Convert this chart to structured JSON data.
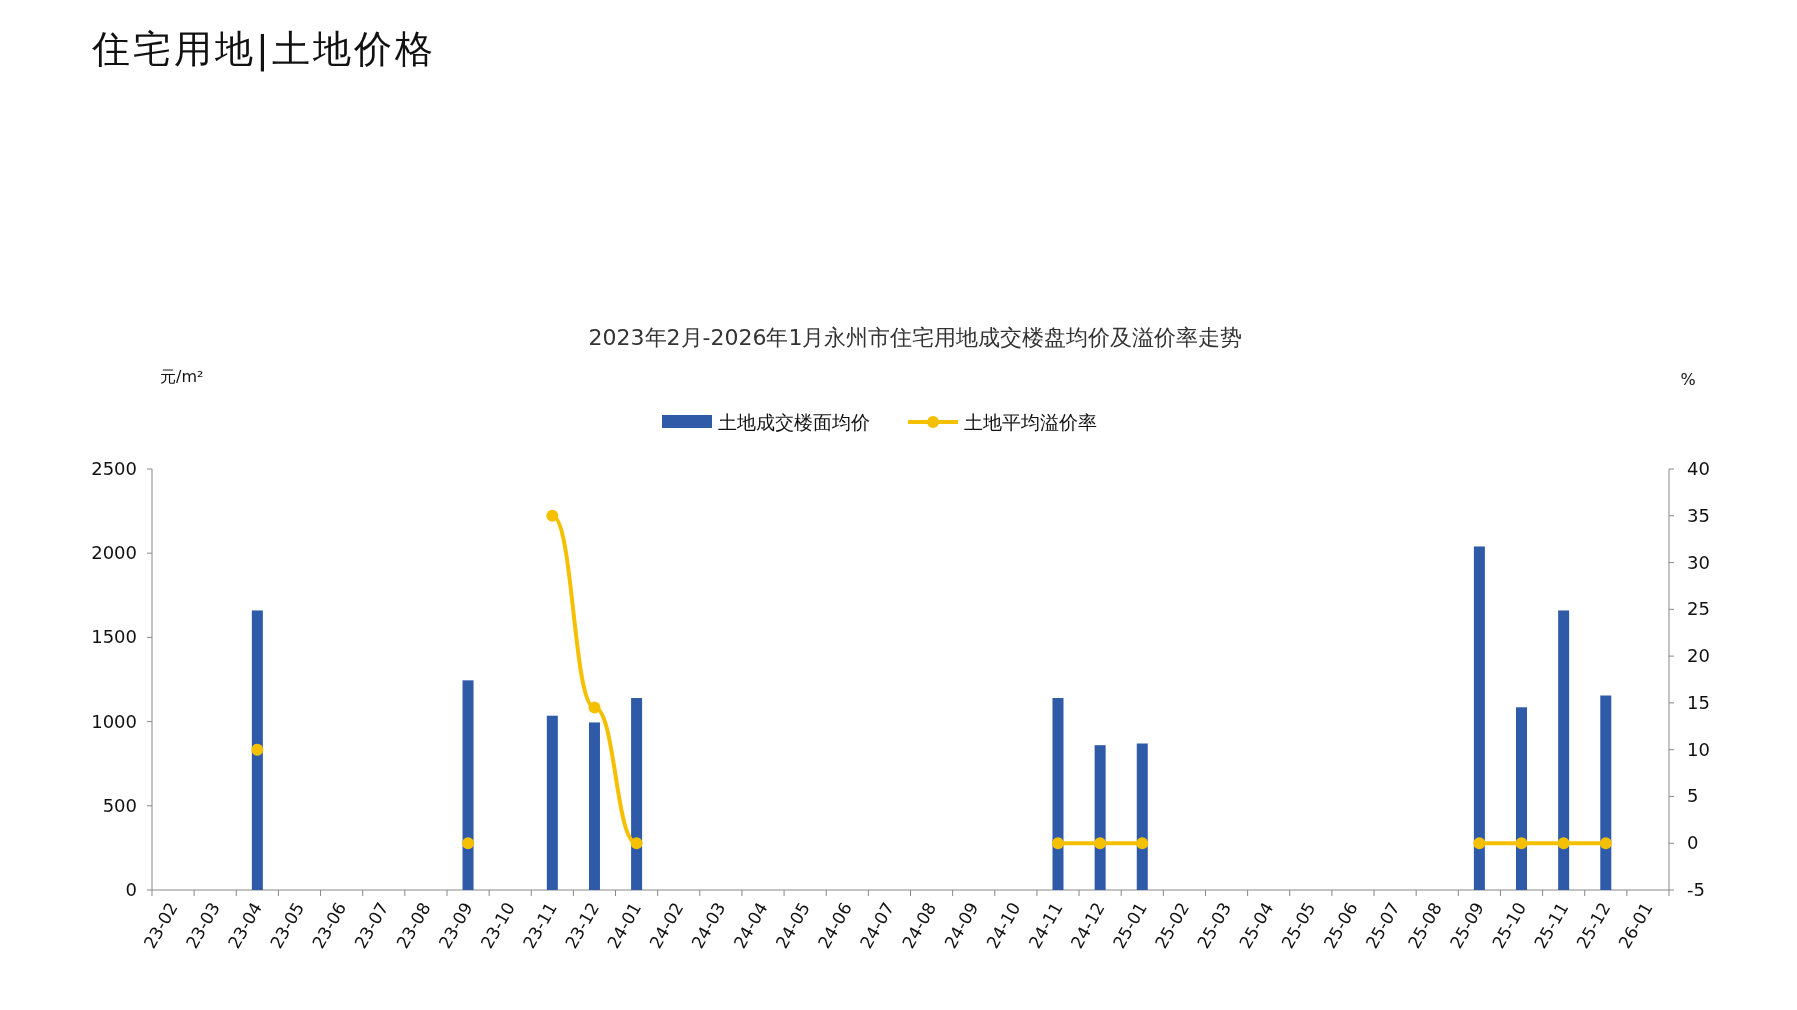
{
  "chart_data": {
    "type": "bar",
    "title": "住宅用地|土地价格",
    "subtitle": "2023年2月-2026年1月永州市住宅用地成交楼盘均价及溢价率走势",
    "ylabel": "元/m²",
    "y2label": "%",
    "categories": [
      "23-02",
      "23-03",
      "23-04",
      "23-05",
      "23-06",
      "23-07",
      "23-08",
      "23-09",
      "23-10",
      "23-11",
      "23-12",
      "24-01",
      "24-02",
      "24-03",
      "24-04",
      "24-05",
      "24-06",
      "24-07",
      "24-08",
      "24-09",
      "24-10",
      "24-11",
      "24-12",
      "25-01",
      "25-02",
      "25-03",
      "25-04",
      "25-05",
      "25-06",
      "25-07",
      "25-08",
      "25-09",
      "25-10",
      "25-11",
      "25-12",
      "26-01"
    ],
    "series": [
      {
        "name": "土地成交楼面均价",
        "color": "#2e5aa8",
        "values": [
          null,
          null,
          1660,
          null,
          null,
          null,
          null,
          1245,
          null,
          1035,
          995,
          1140,
          null,
          null,
          null,
          null,
          null,
          null,
          null,
          null,
          null,
          1140,
          860,
          870,
          null,
          null,
          null,
          null,
          null,
          null,
          null,
          2040,
          1085,
          1660,
          1155,
          null
        ]
      },
      {
        "name": "土地平均溢价率",
        "type": "line",
        "axis": "y2",
        "color": "#f5c000",
        "marker": "circle",
        "values": [
          null,
          null,
          10,
          null,
          null,
          null,
          null,
          0,
          null,
          35,
          14.5,
          0,
          null,
          null,
          null,
          null,
          null,
          null,
          null,
          null,
          null,
          0,
          0,
          0,
          null,
          null,
          null,
          null,
          null,
          null,
          null,
          0,
          0,
          0,
          0,
          null
        ]
      }
    ],
    "ylim": [
      0,
      2500
    ],
    "yticks": [
      0,
      500,
      1000,
      1500,
      2000,
      2500
    ],
    "y2lim": [
      -5,
      40
    ],
    "y2ticks": [
      -5,
      0,
      5,
      10,
      15,
      20,
      25,
      30,
      35,
      40
    ],
    "legend": "top",
    "grid": false
  }
}
